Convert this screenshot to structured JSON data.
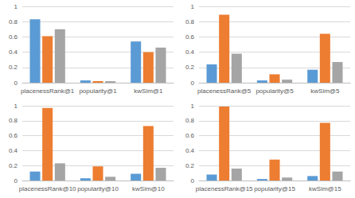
{
  "chart_data": [
    {
      "type": "bar",
      "categories": [
        "placenessRank@1",
        "popularity@1",
        "kwSim@1"
      ],
      "series": [
        {
          "color": "#5b9bd5",
          "values": [
            0.83,
            0.03,
            0.54
          ]
        },
        {
          "color": "#ed7d31",
          "values": [
            0.61,
            0.02,
            0.4
          ]
        },
        {
          "color": "#a5a5a5",
          "values": [
            0.7,
            0.02,
            0.46
          ]
        }
      ],
      "ylim": [
        0,
        1
      ],
      "yticks": [
        0,
        0.2,
        0.4,
        0.6,
        0.8,
        1
      ],
      "grid": true
    },
    {
      "type": "bar",
      "categories": [
        "placenessRank@5",
        "popularity@5",
        "kwSim@5"
      ],
      "series": [
        {
          "color": "#5b9bd5",
          "values": [
            0.24,
            0.03,
            0.17
          ]
        },
        {
          "color": "#ed7d31",
          "values": [
            0.89,
            0.11,
            0.64
          ]
        },
        {
          "color": "#a5a5a5",
          "values": [
            0.38,
            0.04,
            0.27
          ]
        }
      ],
      "ylim": [
        0,
        1
      ],
      "yticks": [
        0,
        0.2,
        0.4,
        0.6,
        0.8,
        1
      ],
      "grid": true
    },
    {
      "type": "bar",
      "categories": [
        "placenessRank@10",
        "popularity@10",
        "kwSim@10"
      ],
      "series": [
        {
          "color": "#5b9bd5",
          "values": [
            0.12,
            0.03,
            0.09
          ]
        },
        {
          "color": "#ed7d31",
          "values": [
            0.97,
            0.19,
            0.73
          ]
        },
        {
          "color": "#a5a5a5",
          "values": [
            0.23,
            0.05,
            0.17
          ]
        }
      ],
      "ylim": [
        0,
        1
      ],
      "yticks": [
        0,
        0.2,
        0.4,
        0.6,
        0.8,
        1
      ],
      "grid": true
    },
    {
      "type": "bar",
      "categories": [
        "placenessRank@15",
        "popularity@15",
        "kwSim@15"
      ],
      "series": [
        {
          "color": "#5b9bd5",
          "values": [
            0.08,
            0.02,
            0.06
          ]
        },
        {
          "color": "#ed7d31",
          "values": [
            0.99,
            0.28,
            0.77
          ]
        },
        {
          "color": "#a5a5a5",
          "values": [
            0.16,
            0.04,
            0.12
          ]
        }
      ],
      "ylim": [
        0,
        1
      ],
      "yticks": [
        0,
        0.2,
        0.4,
        0.6,
        0.8,
        1
      ],
      "grid": true
    }
  ]
}
